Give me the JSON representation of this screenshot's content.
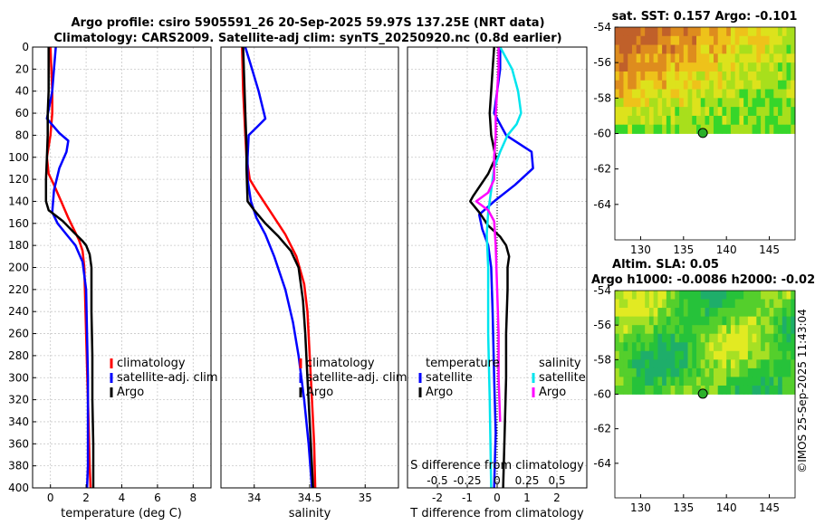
{
  "title": {
    "line1": "Argo profile: csiro 5905591_26 20-Sep-2025 59.97S 137.25E (NRT data)",
    "line2": "Climatology: CARS2009. Satellite-adj clim: synTS_20250920.nc (0.8d earlier)"
  },
  "watermark": "©IMOS 25-Sep-2025 11:43:04",
  "colors": {
    "climatology": "#ff0000",
    "satellite": "#0000ff",
    "argo": "#000000",
    "sal_satellite": "#00e5ee",
    "sal_argo": "#ff00ff"
  },
  "chart_data": [
    {
      "name": "temperature",
      "type": "line",
      "xlabel": "temperature (deg C)",
      "xlim": [
        -1,
        9
      ],
      "ylim": [
        0,
        400
      ],
      "y_inverted": true,
      "xticks": [
        "0",
        "2",
        "4",
        "6",
        "8"
      ],
      "xtick_values": [
        0,
        2,
        4,
        6,
        8
      ],
      "yticks": [
        "0",
        "20",
        "40",
        "60",
        "80",
        "100",
        "120",
        "140",
        "160",
        "180",
        "200",
        "220",
        "240",
        "260",
        "280",
        "300",
        "320",
        "340",
        "360",
        "380",
        "400"
      ],
      "legend": [
        "climatology",
        "satellite-adj. clim",
        "Argo"
      ],
      "series": [
        {
          "name": "climatology",
          "color": "#ff0000",
          "points": [
            [
              0,
              0
            ],
            [
              0.05,
              20
            ],
            [
              0.1,
              40
            ],
            [
              0.1,
              60
            ],
            [
              0,
              80
            ],
            [
              -0.2,
              100
            ],
            [
              -0.1,
              115
            ],
            [
              0.2,
              125
            ],
            [
              0.6,
              140
            ],
            [
              1.0,
              155
            ],
            [
              1.3,
              165
            ],
            [
              1.6,
              175
            ],
            [
              1.8,
              185
            ],
            [
              1.9,
              200
            ],
            [
              1.95,
              230
            ],
            [
              2.0,
              260
            ],
            [
              2.05,
              290
            ],
            [
              2.1,
              320
            ],
            [
              2.15,
              350
            ],
            [
              2.2,
              380
            ],
            [
              2.25,
              400
            ]
          ]
        },
        {
          "name": "satellite-adj. clim",
          "color": "#0000ff",
          "points": [
            [
              0.3,
              0
            ],
            [
              0.2,
              20
            ],
            [
              0.1,
              40
            ],
            [
              -0.2,
              65
            ],
            [
              0.5,
              78
            ],
            [
              1.0,
              85
            ],
            [
              0.9,
              95
            ],
            [
              0.5,
              110
            ],
            [
              0.2,
              130
            ],
            [
              0.1,
              150
            ],
            [
              0.4,
              160
            ],
            [
              0.9,
              170
            ],
            [
              1.4,
              180
            ],
            [
              1.8,
              195
            ],
            [
              2.0,
              220
            ],
            [
              2.05,
              260
            ],
            [
              2.1,
              300
            ],
            [
              2.1,
              340
            ],
            [
              2.1,
              380
            ],
            [
              2.05,
              400
            ]
          ]
        },
        {
          "name": "Argo",
          "color": "#000000",
          "points": [
            [
              -0.1,
              0
            ],
            [
              -0.1,
              20
            ],
            [
              -0.1,
              40
            ],
            [
              -0.15,
              60
            ],
            [
              -0.15,
              80
            ],
            [
              -0.2,
              100
            ],
            [
              -0.25,
              120
            ],
            [
              -0.25,
              140
            ],
            [
              -0.1,
              148
            ],
            [
              0.3,
              153
            ],
            [
              0.7,
              158
            ],
            [
              1.3,
              168
            ],
            [
              1.8,
              176
            ],
            [
              2.0,
              180
            ],
            [
              2.2,
              188
            ],
            [
              2.3,
              200
            ],
            [
              2.3,
              240
            ],
            [
              2.35,
              280
            ],
            [
              2.35,
              320
            ],
            [
              2.4,
              360
            ],
            [
              2.4,
              400
            ]
          ]
        }
      ]
    },
    {
      "name": "salinity",
      "type": "line",
      "xlabel": "salinity",
      "xlim": [
        33.7,
        35.3
      ],
      "ylim": [
        0,
        400
      ],
      "y_inverted": true,
      "xticks": [
        "34",
        "34.5",
        "35"
      ],
      "xtick_values": [
        34,
        34.5,
        35
      ],
      "legend": [
        "climatology",
        "satellite-adj. clim",
        "Argo"
      ],
      "series": [
        {
          "name": "climatology",
          "color": "#ff0000",
          "points": [
            [
              33.89,
              0
            ],
            [
              33.9,
              40
            ],
            [
              33.92,
              80
            ],
            [
              33.93,
              100
            ],
            [
              33.96,
              120
            ],
            [
              34.02,
              130
            ],
            [
              34.15,
              150
            ],
            [
              34.28,
              170
            ],
            [
              34.38,
              190
            ],
            [
              34.45,
              215
            ],
            [
              34.48,
              240
            ],
            [
              34.5,
              280
            ],
            [
              34.52,
              320
            ],
            [
              34.54,
              360
            ],
            [
              34.55,
              400
            ]
          ]
        },
        {
          "name": "satellite-adj. clim",
          "color": "#0000ff",
          "points": [
            [
              33.92,
              0
            ],
            [
              33.98,
              20
            ],
            [
              34.04,
              40
            ],
            [
              34.1,
              65
            ],
            [
              34.03,
              72
            ],
            [
              33.95,
              80
            ],
            [
              33.94,
              100
            ],
            [
              33.94,
              120
            ],
            [
              33.97,
              140
            ],
            [
              34.02,
              155
            ],
            [
              34.1,
              170
            ],
            [
              34.18,
              190
            ],
            [
              34.28,
              220
            ],
            [
              34.35,
              250
            ],
            [
              34.4,
              280
            ],
            [
              34.45,
              320
            ],
            [
              34.49,
              360
            ],
            [
              34.52,
              400
            ]
          ]
        },
        {
          "name": "Argo",
          "color": "#000000",
          "points": [
            [
              33.9,
              0
            ],
            [
              33.91,
              30
            ],
            [
              33.92,
              60
            ],
            [
              33.93,
              90
            ],
            [
              33.93,
              110
            ],
            [
              33.94,
              140
            ],
            [
              34.0,
              148
            ],
            [
              34.1,
              160
            ],
            [
              34.22,
              172
            ],
            [
              34.33,
              185
            ],
            [
              34.4,
              200
            ],
            [
              34.44,
              230
            ],
            [
              34.46,
              260
            ],
            [
              34.48,
              300
            ],
            [
              34.5,
              340
            ],
            [
              34.52,
              380
            ],
            [
              34.53,
              400
            ]
          ]
        }
      ]
    },
    {
      "name": "differences",
      "type": "line",
      "xlabel": "T difference from climatology",
      "xlabel_top": "S difference from climatology",
      "xlim": [
        -3,
        3
      ],
      "ylim": [
        0,
        400
      ],
      "y_inverted": true,
      "xticks": [
        "-2",
        "-1",
        "0",
        "1",
        "2"
      ],
      "xtick_values": [
        -2,
        -1,
        0,
        1,
        2
      ],
      "top_ticks": [
        "-0.5",
        "-0.25",
        "0",
        "0.25",
        "0.5"
      ],
      "top_tick_values": [
        -2,
        -1,
        0,
        1,
        2
      ],
      "legend_left_title": "temperature",
      "legend_left": [
        "satellite",
        "Argo"
      ],
      "legend_right_title": "salinity",
      "legend_right": [
        "satellite",
        "Argo"
      ],
      "series": [
        {
          "name": "T satellite",
          "color": "#0000ff",
          "points": [
            [
              0.1,
              0
            ],
            [
              0.1,
              20
            ],
            [
              0.0,
              40
            ],
            [
              -0.1,
              60
            ],
            [
              0.3,
              80
            ],
            [
              1.15,
              95
            ],
            [
              1.2,
              110
            ],
            [
              0.6,
              125
            ],
            [
              -0.1,
              140
            ],
            [
              -0.6,
              152
            ],
            [
              -0.5,
              165
            ],
            [
              -0.3,
              180
            ],
            [
              -0.2,
              200
            ],
            [
              -0.15,
              240
            ],
            [
              -0.1,
              300
            ],
            [
              -0.05,
              350
            ],
            [
              -0.1,
              400
            ]
          ]
        },
        {
          "name": "T Argo",
          "color": "#000000",
          "points": [
            [
              -0.1,
              0
            ],
            [
              -0.15,
              20
            ],
            [
              -0.2,
              40
            ],
            [
              -0.25,
              60
            ],
            [
              -0.2,
              80
            ],
            [
              -0.05,
              100
            ],
            [
              -0.3,
              115
            ],
            [
              -0.8,
              135
            ],
            [
              -0.9,
              140
            ],
            [
              -0.6,
              150
            ],
            [
              -0.3,
              162
            ],
            [
              0.1,
              172
            ],
            [
              0.3,
              180
            ],
            [
              0.4,
              190
            ],
            [
              0.35,
              200
            ],
            [
              0.35,
              220
            ],
            [
              0.3,
              260
            ],
            [
              0.3,
              300
            ],
            [
              0.25,
              350
            ],
            [
              0.2,
              400
            ]
          ]
        },
        {
          "name": "S satellite",
          "color": "#00e5ee",
          "points": [
            [
              0.1,
              0
            ],
            [
              0.5,
              20
            ],
            [
              0.7,
              40
            ],
            [
              0.8,
              60
            ],
            [
              0.65,
              70
            ],
            [
              0.35,
              80
            ],
            [
              0.1,
              95
            ],
            [
              -0.1,
              110
            ],
            [
              -0.2,
              130
            ],
            [
              -0.3,
              150
            ],
            [
              -0.35,
              170
            ],
            [
              -0.3,
              200
            ],
            [
              -0.3,
              260
            ],
            [
              -0.25,
              320
            ],
            [
              -0.2,
              400
            ]
          ]
        },
        {
          "name": "S Argo",
          "color": "#ff00ff",
          "points": [
            [
              0.05,
              0
            ],
            [
              0.05,
              20
            ],
            [
              0.0,
              40
            ],
            [
              -0.05,
              60
            ],
            [
              -0.05,
              80
            ],
            [
              -0.1,
              100
            ],
            [
              -0.1,
              120
            ],
            [
              -0.3,
              132
            ],
            [
              -0.7,
              140
            ],
            [
              -0.3,
              148
            ],
            [
              -0.1,
              158
            ],
            [
              -0.05,
              180
            ],
            [
              0.0,
              220
            ],
            [
              0.05,
              260
            ],
            [
              0.05,
              300
            ],
            [
              0.1,
              340
            ]
          ]
        }
      ]
    },
    {
      "name": "sat_sst_map",
      "type": "heatmap",
      "title": "sat. SST: 0.157 Argo: -0.101",
      "xlim": [
        127,
        148
      ],
      "ylim": [
        -66,
        -54
      ],
      "xticks": [
        "130",
        "135",
        "140",
        "145"
      ],
      "xtick_values": [
        130,
        135,
        140,
        145
      ],
      "yticks": [
        "-54",
        "-56",
        "-58",
        "-60",
        "-62",
        "-64"
      ],
      "ytick_values": [
        -54,
        -56,
        -58,
        -60,
        -62,
        -64
      ],
      "data_lat_min": -60,
      "marker": {
        "lon": 137.25,
        "lat": -59.97
      }
    },
    {
      "name": "altim_sla_map",
      "type": "heatmap",
      "title": "Altim. SLA: 0.05",
      "subtitle": "Argo h1000: -0.0086 h2000: -0.02",
      "xlim": [
        127,
        148
      ],
      "ylim": [
        -66,
        -54
      ],
      "xticks": [
        "130",
        "135",
        "140",
        "145"
      ],
      "xtick_values": [
        130,
        135,
        140,
        145
      ],
      "yticks": [
        "-54",
        "-56",
        "-58",
        "-60",
        "-62",
        "-64"
      ],
      "ytick_values": [
        -54,
        -56,
        -58,
        -60,
        -62,
        -64
      ],
      "data_lat_min": -60,
      "marker": {
        "lon": 137.25,
        "lat": -59.97
      }
    }
  ]
}
